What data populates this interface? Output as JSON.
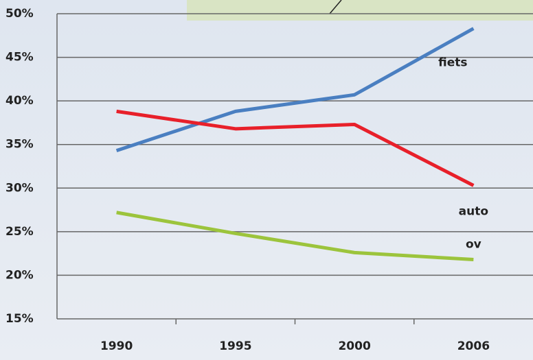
{
  "chart_data": {
    "type": "line",
    "categories": [
      "1990",
      "1995",
      "2000",
      "2006"
    ],
    "series": [
      {
        "name": "fiets",
        "color": "#4a7fc1",
        "values": [
          34.3,
          38.8,
          40.7,
          48.3
        ]
      },
      {
        "name": "auto",
        "color": "#e8202a",
        "values": [
          38.8,
          36.8,
          37.3,
          30.3
        ]
      },
      {
        "name": "ov",
        "color": "#9cc43c",
        "values": [
          27.2,
          24.8,
          22.6,
          21.8
        ]
      }
    ],
    "ylim": [
      15,
      50
    ],
    "yticks": [
      {
        "value": 15,
        "label": "15%"
      },
      {
        "value": 20,
        "label": "20%"
      },
      {
        "value": 25,
        "label": "25%"
      },
      {
        "value": 30,
        "label": "30%"
      },
      {
        "value": 35,
        "label": "35%"
      },
      {
        "value": 40,
        "label": "40%"
      },
      {
        "value": 45,
        "label": "45%"
      },
      {
        "value": 50,
        "label": "50%"
      }
    ],
    "grid": true
  }
}
